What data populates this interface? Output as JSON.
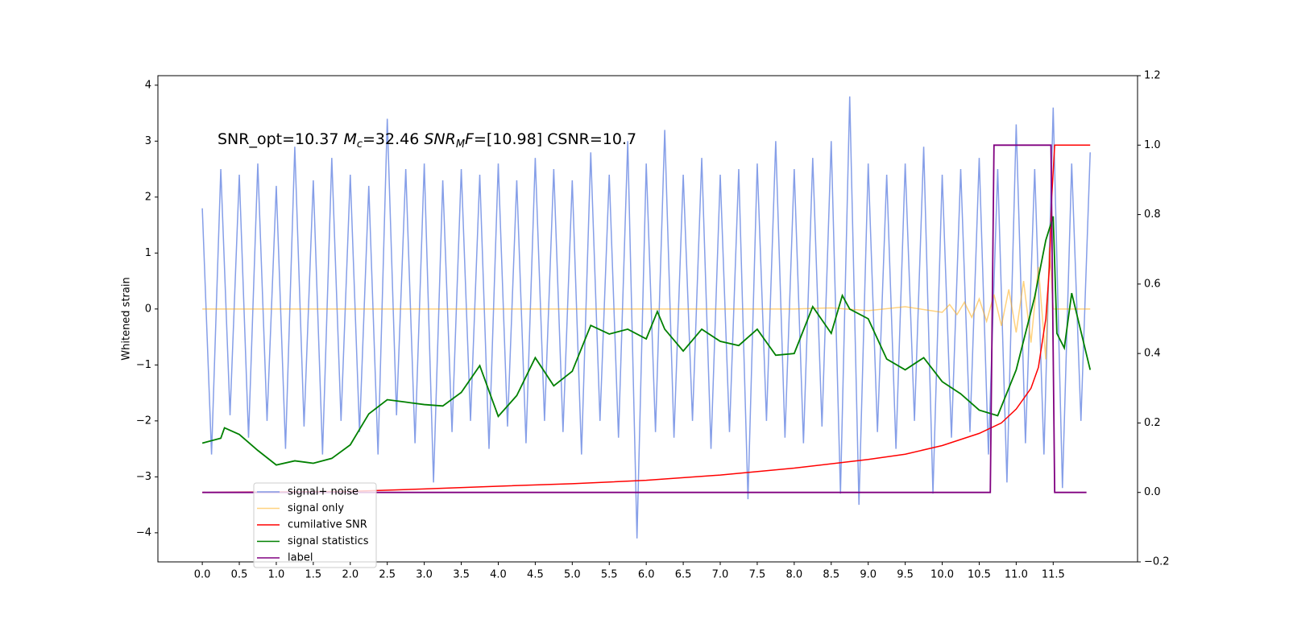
{
  "chart_data": {
    "type": "line",
    "annotation": [
      "SNR_opt=10.37",
      "M",
      "c",
      "=32.46",
      "SNR",
      "M",
      "F",
      "=[10.98] CSNR=10.7"
    ],
    "ylabel": "Whitened strain",
    "xlim": [
      -0.6,
      12.64
    ],
    "ylim": [
      -4.52,
      4.17
    ],
    "y2lim": [
      -0.2,
      1.2
    ],
    "xticks": [
      {
        "value": 0,
        "label": "0.0"
      },
      0.5,
      {
        "value": 1,
        "label": "1.0"
      },
      1.5,
      {
        "value": 2,
        "label": "2.0"
      },
      2.5,
      {
        "value": 3,
        "label": "3.0"
      },
      3.5,
      {
        "value": 4,
        "label": "4.0"
      },
      4.5,
      {
        "value": 5,
        "label": "5.0"
      },
      5.5,
      {
        "value": 6,
        "label": "6.0"
      },
      6.5,
      {
        "value": 7,
        "label": "7.0"
      },
      7.5,
      {
        "value": 8,
        "label": "8.0"
      },
      8.5,
      {
        "value": 9,
        "label": "9.0"
      },
      9.5,
      {
        "value": 10,
        "label": "10.0"
      },
      10.5,
      {
        "value": 11,
        "label": "11.0"
      },
      11.5
    ],
    "yticks": [
      {
        "value": -4,
        "label": "−4"
      },
      {
        "value": -3,
        "label": "−3"
      },
      {
        "value": -2,
        "label": "−2"
      },
      {
        "value": -1,
        "label": "−1"
      },
      0,
      1,
      2,
      3,
      4
    ],
    "y2ticks": [
      {
        "value": -0.2,
        "label": "−0.2"
      },
      {
        "value": 0,
        "label": "0.0"
      },
      0.2,
      0.4,
      0.6,
      0.8,
      {
        "value": 1,
        "label": "1.0"
      },
      1.2
    ],
    "legend": "lower left",
    "series": [
      {
        "name": "signal+ noise",
        "color": "#7893e6",
        "x": [
          0,
          0.125,
          0.25,
          0.375,
          0.5,
          0.625,
          0.75,
          0.875,
          1,
          1.125,
          1.25,
          1.375,
          1.5,
          1.625,
          1.75,
          1.875,
          2,
          2.125,
          2.25,
          2.375,
          2.5,
          2.625,
          2.75,
          2.875,
          3,
          3.125,
          3.25,
          3.375,
          3.5,
          3.625,
          3.75,
          3.875,
          4,
          4.125,
          4.25,
          4.375,
          4.5,
          4.625,
          4.75,
          4.875,
          5,
          5.125,
          5.25,
          5.375,
          5.5,
          5.625,
          5.75,
          5.875,
          6,
          6.125,
          6.25,
          6.375,
          6.5,
          6.625,
          6.75,
          6.875,
          7,
          7.125,
          7.25,
          7.375,
          7.5,
          7.625,
          7.75,
          7.875,
          8,
          8.125,
          8.25,
          8.375,
          8.5,
          8.625,
          8.75,
          8.875,
          9,
          9.125,
          9.25,
          9.375,
          9.5,
          9.625,
          9.75,
          9.875,
          10,
          10.125,
          10.25,
          10.375,
          10.5,
          10.625,
          10.75,
          10.875,
          11,
          11.125,
          11.25,
          11.375,
          11.5,
          11.625,
          11.75,
          11.875,
          12
        ],
        "values": [
          1.8,
          -2.6,
          2.5,
          -1.9,
          2.4,
          -2.3,
          2.6,
          -2.0,
          2.2,
          -2.5,
          2.9,
          -2.1,
          2.3,
          -2.6,
          2.7,
          -2.0,
          2.4,
          -2.2,
          2.2,
          -2.6,
          3.4,
          -1.9,
          2.5,
          -2.4,
          2.6,
          -3.1,
          2.3,
          -2.2,
          2.5,
          -2.0,
          2.4,
          -2.5,
          2.6,
          -2.1,
          2.3,
          -2.4,
          2.7,
          -2.0,
          2.5,
          -2.2,
          2.3,
          -2.6,
          2.8,
          -2.0,
          2.4,
          -2.3,
          3.0,
          -4.1,
          2.6,
          -2.2,
          3.2,
          -2.3,
          2.4,
          -2.0,
          2.7,
          -2.5,
          2.4,
          -2.2,
          2.5,
          -3.4,
          2.6,
          -2.0,
          3.0,
          -2.3,
          2.5,
          -2.4,
          2.7,
          -2.1,
          3.0,
          -3.3,
          3.8,
          -3.5,
          2.6,
          -2.2,
          2.4,
          -2.5,
          2.6,
          -2.0,
          2.9,
          -3.3,
          2.4,
          -2.3,
          2.5,
          -2.2,
          2.7,
          -2.6,
          2.5,
          -3.1,
          3.3,
          -2.4,
          2.5,
          -2.6,
          3.6,
          -3.2,
          2.6,
          -2.0,
          2.8
        ]
      },
      {
        "name": "signal only",
        "color": "#ffa500",
        "x": [
          0,
          1,
          2,
          3,
          4,
          5,
          6,
          7,
          8,
          8.5,
          9,
          9.5,
          10,
          10.1,
          10.2,
          10.3,
          10.4,
          10.5,
          10.6,
          10.7,
          10.8,
          10.9,
          11,
          11.1,
          11.2,
          11.3,
          11.4,
          11.45,
          11.5,
          12
        ],
        "values": [
          0,
          0,
          0,
          0,
          0,
          0,
          0,
          0,
          0,
          0.02,
          -0.03,
          0.04,
          -0.06,
          0.08,
          -0.1,
          0.12,
          -0.15,
          0.18,
          -0.22,
          0.26,
          -0.3,
          0.35,
          -0.42,
          0.5,
          -0.6,
          0.75,
          -0.9,
          1.1,
          0,
          0
        ]
      },
      {
        "name": "cumilative SNR",
        "color": "#ff0000",
        "axis": "y2",
        "x": [
          0,
          2,
          3,
          4,
          5,
          6,
          7,
          8,
          9,
          9.5,
          10,
          10.5,
          10.8,
          11,
          11.2,
          11.3,
          11.4,
          11.45,
          11.48,
          11.52,
          12
        ],
        "values": [
          0,
          0.003,
          0.01,
          0.018,
          0.025,
          0.035,
          0.05,
          0.07,
          0.095,
          0.11,
          0.135,
          0.17,
          0.2,
          0.24,
          0.3,
          0.36,
          0.5,
          0.65,
          0.85,
          1.0,
          1.0
        ]
      },
      {
        "name": "signal statistics",
        "color": "#008000",
        "axis": "y2",
        "x": [
          0,
          0.25,
          0.3,
          0.5,
          0.75,
          1,
          1.25,
          1.5,
          1.75,
          2,
          2.25,
          2.5,
          2.75,
          3,
          3.25,
          3.5,
          3.75,
          4,
          4.25,
          4.5,
          4.75,
          5,
          5.25,
          5.5,
          5.75,
          6,
          6.15,
          6.25,
          6.5,
          6.75,
          7,
          7.25,
          7.5,
          7.75,
          8,
          8.25,
          8.5,
          8.65,
          8.75,
          9,
          9.25,
          9.5,
          9.75,
          10,
          10.25,
          10.5,
          10.75,
          11,
          11.25,
          11.4,
          11.5,
          11.55,
          11.65,
          11.75,
          12
        ],
        "values": [
          0.142,
          0.156,
          0.186,
          0.167,
          0.121,
          0.079,
          0.091,
          0.084,
          0.098,
          0.137,
          0.226,
          0.267,
          0.26,
          0.253,
          0.249,
          0.288,
          0.365,
          0.219,
          0.279,
          0.388,
          0.307,
          0.349,
          0.481,
          0.456,
          0.47,
          0.442,
          0.521,
          0.47,
          0.407,
          0.47,
          0.435,
          0.423,
          0.47,
          0.395,
          0.4,
          0.535,
          0.458,
          0.567,
          0.528,
          0.5,
          0.384,
          0.353,
          0.388,
          0.319,
          0.284,
          0.237,
          0.221,
          0.353,
          0.563,
          0.726,
          0.795,
          0.458,
          0.416,
          0.574,
          0.353
        ]
      },
      {
        "name": "label",
        "color": "#800080",
        "axis": "y2",
        "x": [
          0,
          10.65,
          10.7,
          11.47,
          11.52,
          11.95
        ],
        "values": [
          0,
          0,
          1,
          1,
          0,
          0
        ]
      }
    ]
  }
}
